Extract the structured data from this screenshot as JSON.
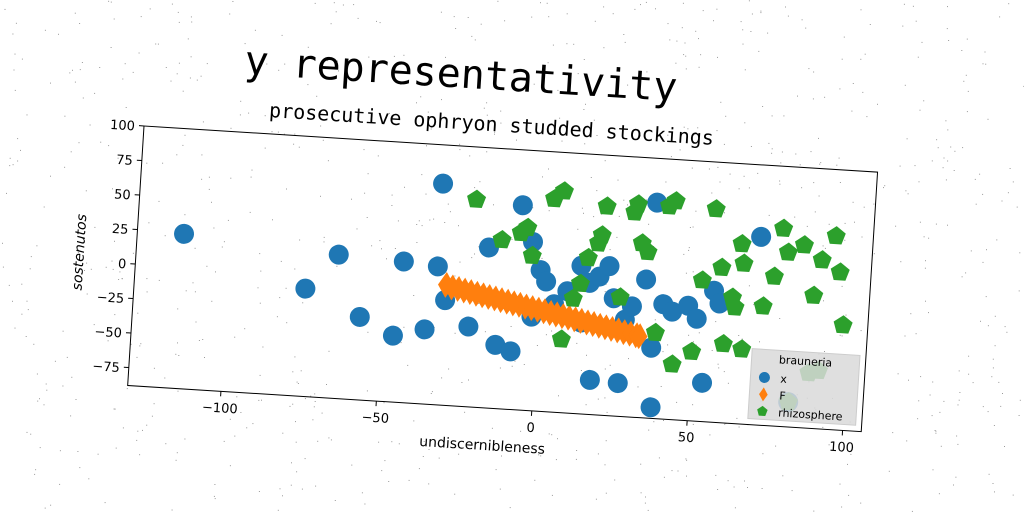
{
  "chart_data": {
    "type": "scatter",
    "title": "y representativity",
    "subtitle": "prosecutive ophryon studded stockings",
    "xlabel": "undiscernibleness",
    "ylabel": "sostenutos",
    "xlim": [
      -130,
      106
    ],
    "ylim": [
      -88,
      100
    ],
    "xticks": [
      -100,
      -50,
      0,
      50,
      100
    ],
    "yticks": [
      -75,
      -50,
      -25,
      0,
      25,
      50,
      75,
      100
    ],
    "grid": false,
    "legend": {
      "title": "brauneria",
      "placement": "lower right"
    },
    "series": [
      {
        "name": "x",
        "color": "#1f77b4",
        "marker": "circle",
        "points": [
          [
            -115,
            24
          ],
          [
            -75,
            -10
          ],
          [
            -65,
            16
          ],
          [
            -57,
            -28
          ],
          [
            -46,
            -40
          ],
          [
            -44,
            14
          ],
          [
            -36,
            -34
          ],
          [
            -33,
            12
          ],
          [
            -33,
            72
          ],
          [
            -30,
            -12
          ],
          [
            -22,
            -30
          ],
          [
            -17,
            28
          ],
          [
            -13,
            -42
          ],
          [
            -8,
            -46
          ],
          [
            -7,
            60
          ],
          [
            -3,
            34
          ],
          [
            -2,
            -20
          ],
          [
            0,
            14
          ],
          [
            2,
            6
          ],
          [
            5,
            -10
          ],
          [
            9,
            0
          ],
          [
            13,
            19
          ],
          [
            14,
            -22
          ],
          [
            16,
            7
          ],
          [
            18,
            -63
          ],
          [
            19,
            12
          ],
          [
            22,
            20
          ],
          [
            24,
            -3
          ],
          [
            27,
            -64
          ],
          [
            28,
            -18
          ],
          [
            30,
            -8
          ],
          [
            34,
            12
          ],
          [
            36,
            68
          ],
          [
            37,
            -37
          ],
          [
            38,
            -80
          ],
          [
            40,
            -5
          ],
          [
            43,
            -10
          ],
          [
            48,
            -5
          ],
          [
            51,
            -14
          ],
          [
            54,
            -60
          ],
          [
            56,
            7
          ],
          [
            58,
            -2
          ],
          [
            70,
            48
          ],
          [
            82,
            -70
          ]
        ]
      },
      {
        "name": "F",
        "color": "#ff7f0e",
        "marker": "diamond",
        "points": [
          [
            -30,
            -1
          ],
          [
            -28,
            -2.5
          ],
          [
            -26,
            -3.3
          ],
          [
            -24,
            -4.2
          ],
          [
            -22,
            -5
          ],
          [
            -20,
            -6
          ],
          [
            -18,
            -6.8
          ],
          [
            -16,
            -7.7
          ],
          [
            -14,
            -8.5
          ],
          [
            -12,
            -9.5
          ],
          [
            -10,
            -10.3
          ],
          [
            -8,
            -11.2
          ],
          [
            -6,
            -12
          ],
          [
            -4,
            -13
          ],
          [
            -2,
            -13.8
          ],
          [
            0,
            -14.7
          ],
          [
            2,
            -15.5
          ],
          [
            4,
            -16.5
          ],
          [
            6,
            -17.3
          ],
          [
            8,
            -18.2
          ],
          [
            10,
            -19
          ],
          [
            12,
            -20
          ],
          [
            14,
            -20.8
          ],
          [
            16,
            -21.7
          ],
          [
            18,
            -22.5
          ],
          [
            20,
            -23.5
          ],
          [
            22,
            -24.3
          ],
          [
            24,
            -25.2
          ],
          [
            26,
            -26
          ],
          [
            28,
            -27
          ],
          [
            30,
            -27.8
          ],
          [
            32,
            -28.7
          ],
          [
            33,
            -29.2
          ]
        ]
      },
      {
        "name": "rhizosphere",
        "color": "#2ca02c",
        "marker": "pentagon",
        "points": [
          [
            -22,
            62
          ],
          [
            -13,
            34
          ],
          [
            -7,
            40
          ],
          [
            -5,
            44
          ],
          [
            -3,
            24
          ],
          [
            3,
            66
          ],
          [
            6,
            72
          ],
          [
            8,
            -35
          ],
          [
            11,
            -5
          ],
          [
            13,
            6
          ],
          [
            15,
            25
          ],
          [
            18,
            36
          ],
          [
            19,
            42
          ],
          [
            20,
            63
          ],
          [
            26,
            -2
          ],
          [
            29,
            60
          ],
          [
            30,
            66
          ],
          [
            32,
            38
          ],
          [
            34,
            32
          ],
          [
            38,
            -26
          ],
          [
            40,
            66
          ],
          [
            42,
            70
          ],
          [
            44,
            -48
          ],
          [
            50,
            -38
          ],
          [
            52,
            14
          ],
          [
            55,
            66
          ],
          [
            58,
            24
          ],
          [
            60,
            -31
          ],
          [
            62,
            3
          ],
          [
            63,
            -4
          ],
          [
            64,
            42
          ],
          [
            65,
            28
          ],
          [
            66,
            -34
          ],
          [
            72,
            -2
          ],
          [
            75,
            20
          ],
          [
            77,
            55
          ],
          [
            79,
            38
          ],
          [
            82,
            -70
          ],
          [
            84,
            44
          ],
          [
            88,
            8
          ],
          [
            88,
            -48
          ],
          [
            90,
            34
          ],
          [
            91,
            -46
          ],
          [
            94,
            52
          ],
          [
            96,
            26
          ],
          [
            98,
            -12
          ]
        ]
      }
    ]
  }
}
